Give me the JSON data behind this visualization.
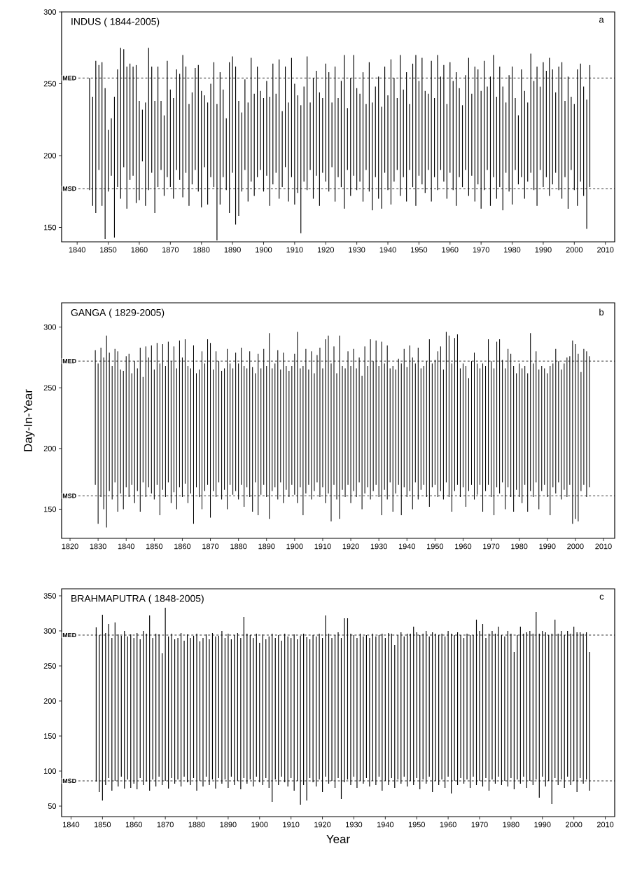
{
  "chart_data": [
    {
      "type": "bar",
      "title": "INDUS ( 1844-2005)",
      "annotations": [
        "a"
      ],
      "color": "#000000",
      "x": [
        1844,
        1845,
        1846,
        1847,
        1848,
        1849,
        1850,
        1851,
        1852,
        1853,
        1854,
        1855,
        1856,
        1857,
        1858,
        1859,
        1860,
        1861,
        1862,
        1863,
        1864,
        1865,
        1866,
        1867,
        1868,
        1869,
        1870,
        1871,
        1872,
        1873,
        1874,
        1875,
        1876,
        1877,
        1878,
        1879,
        1880,
        1881,
        1882,
        1883,
        1884,
        1885,
        1886,
        1887,
        1888,
        1889,
        1890,
        1891,
        1892,
        1893,
        1894,
        1895,
        1896,
        1897,
        1898,
        1899,
        1900,
        1901,
        1902,
        1903,
        1904,
        1905,
        1906,
        1907,
        1908,
        1909,
        1910,
        1911,
        1912,
        1913,
        1914,
        1915,
        1916,
        1917,
        1918,
        1919,
        1920,
        1921,
        1922,
        1923,
        1924,
        1925,
        1926,
        1927,
        1928,
        1929,
        1930,
        1931,
        1932,
        1933,
        1934,
        1935,
        1936,
        1937,
        1938,
        1939,
        1940,
        1941,
        1942,
        1943,
        1944,
        1945,
        1946,
        1947,
        1948,
        1949,
        1950,
        1951,
        1952,
        1953,
        1954,
        1955,
        1956,
        1957,
        1958,
        1959,
        1960,
        1961,
        1962,
        1963,
        1964,
        1965,
        1966,
        1967,
        1968,
        1969,
        1970,
        1971,
        1972,
        1973,
        1974,
        1975,
        1976,
        1977,
        1978,
        1979,
        1980,
        1981,
        1982,
        1983,
        1984,
        1985,
        1986,
        1987,
        1988,
        1989,
        1990,
        1991,
        1992,
        1993,
        1994,
        1995,
        1996,
        1997,
        1998,
        1999,
        2000,
        2001,
        2002,
        2003,
        2004,
        2005
      ],
      "base": [
        176,
        165,
        160,
        190,
        165,
        142,
        175,
        186,
        143,
        178,
        170,
        192,
        163,
        183,
        186,
        167,
        169,
        196,
        165,
        176,
        188,
        160,
        178,
        190,
        172,
        185,
        178,
        170,
        190,
        183,
        171,
        188,
        165,
        180,
        190,
        175,
        164,
        192,
        166,
        185,
        178,
        141,
        166,
        185,
        176,
        160,
        188,
        152,
        158,
        175,
        190,
        168,
        182,
        172,
        185,
        190,
        175,
        186,
        165,
        180,
        188,
        170,
        178,
        192,
        168,
        185,
        166,
        174,
        146,
        182,
        176,
        190,
        170,
        186,
        165,
        188,
        182,
        175,
        192,
        168,
        185,
        178,
        163,
        190,
        172,
        186,
        176,
        182,
        168,
        190,
        175,
        162,
        185,
        170,
        163,
        188,
        176,
        166,
        182,
        190,
        172,
        185,
        168,
        190,
        178,
        165,
        186,
        180,
        174,
        190,
        168,
        185,
        176,
        190,
        182,
        170,
        188,
        176,
        165,
        185,
        178,
        190,
        172,
        186,
        168,
        180,
        163,
        176,
        190,
        165,
        185,
        170,
        178,
        162,
        188,
        175,
        166,
        190,
        180,
        185,
        170,
        182,
        188,
        176,
        165,
        190,
        178,
        185,
        172,
        180,
        188,
        176,
        170,
        185,
        163,
        190,
        176,
        165,
        182,
        172,
        149,
        178
      ],
      "values": [
        78,
        76,
        106,
        73,
        100,
        105,
        43,
        40,
        98,
        82,
        105,
        82,
        99,
        81,
        76,
        96,
        69,
        36,
        72,
        99,
        74,
        78,
        84,
        48,
        56,
        81,
        68,
        70,
        70,
        74,
        99,
        74,
        71,
        64,
        71,
        88,
        81,
        50,
        71,
        65,
        87,
        95,
        92,
        61,
        50,
        105,
        81,
        110,
        80,
        55,
        63,
        69,
        86,
        71,
        77,
        55,
        65,
        66,
        76,
        84,
        55,
        97,
        53,
        70,
        69,
        83,
        84,
        68,
        89,
        66,
        93,
        47,
        84,
        73,
        79,
        52,
        82,
        83,
        45,
        94,
        55,
        74,
        107,
        43,
        82,
        84,
        71,
        61,
        90,
        46,
        90,
        75,
        63,
        85,
        71,
        74,
        66,
        101,
        72,
        50,
        98,
        61,
        90,
        46,
        86,
        105,
        66,
        88,
        71,
        53,
        98,
        55,
        94,
        65,
        81,
        66,
        77,
        76,
        93,
        62,
        57,
        66,
        96,
        57,
        94,
        80,
        82,
        90,
        58,
        90,
        85,
        71,
        84,
        86,
        49,
        81,
        96,
        50,
        48,
        75,
        75,
        55,
        83,
        76,
        97,
        58,
        87,
        74,
        96,
        80,
        56,
        86,
        95,
        53,
        92,
        51,
        60,
        95,
        82,
        76,
        90,
        85
      ],
      "xlim": [
        1835,
        2013
      ],
      "xticks": [
        1840,
        1850,
        1860,
        1870,
        1880,
        1890,
        1900,
        1910,
        1920,
        1930,
        1940,
        1950,
        1960,
        1970,
        1980,
        1990,
        2000,
        2010
      ],
      "ylim": [
        140,
        300
      ],
      "yticks": [
        150,
        200,
        250,
        300
      ],
      "ref_lines": [
        {
          "axis": "y",
          "value": 254,
          "label": "MED",
          "line_style": "dashed"
        },
        {
          "axis": "y",
          "value": 177,
          "label": "MSD",
          "line_style": "dashed"
        }
      ]
    },
    {
      "type": "bar",
      "title": "GANGA ( 1829-2005)",
      "annotations": [
        "b"
      ],
      "ylabel": "Day-In-Year",
      "color": "#000000",
      "x": [
        1829,
        1830,
        1831,
        1832,
        1833,
        1834,
        1835,
        1836,
        1837,
        1838,
        1839,
        1840,
        1841,
        1842,
        1843,
        1844,
        1845,
        1846,
        1847,
        1848,
        1849,
        1850,
        1851,
        1852,
        1853,
        1854,
        1855,
        1856,
        1857,
        1858,
        1859,
        1860,
        1861,
        1862,
        1863,
        1864,
        1865,
        1866,
        1867,
        1868,
        1869,
        1870,
        1871,
        1872,
        1873,
        1874,
        1875,
        1876,
        1877,
        1878,
        1879,
        1880,
        1881,
        1882,
        1883,
        1884,
        1885,
        1886,
        1887,
        1888,
        1889,
        1890,
        1891,
        1892,
        1893,
        1894,
        1895,
        1896,
        1897,
        1898,
        1899,
        1900,
        1901,
        1902,
        1903,
        1904,
        1905,
        1906,
        1907,
        1908,
        1909,
        1910,
        1911,
        1912,
        1913,
        1914,
        1915,
        1916,
        1917,
        1918,
        1919,
        1920,
        1921,
        1922,
        1923,
        1924,
        1925,
        1926,
        1927,
        1928,
        1929,
        1930,
        1931,
        1932,
        1933,
        1934,
        1935,
        1936,
        1937,
        1938,
        1939,
        1940,
        1941,
        1942,
        1943,
        1944,
        1945,
        1946,
        1947,
        1948,
        1949,
        1950,
        1951,
        1952,
        1953,
        1954,
        1955,
        1956,
        1957,
        1958,
        1959,
        1960,
        1961,
        1962,
        1963,
        1964,
        1965,
        1966,
        1967,
        1968,
        1969,
        1970,
        1971,
        1972,
        1973,
        1974,
        1975,
        1976,
        1977,
        1978,
        1979,
        1980,
        1981,
        1982,
        1983,
        1984,
        1985,
        1986,
        1987,
        1988,
        1989,
        1990,
        1991,
        1992,
        1993,
        1994,
        1995,
        1996,
        1997,
        1998,
        1999,
        2000,
        2001,
        2002,
        2003,
        2004,
        2005
      ],
      "base": [
        170,
        138,
        160,
        150,
        135,
        165,
        158,
        172,
        148,
        163,
        150,
        168,
        160,
        170,
        155,
        165,
        148,
        172,
        160,
        168,
        163,
        158,
        170,
        145,
        166,
        160,
        172,
        155,
        164,
        150,
        168,
        160,
        171,
        155,
        163,
        138,
        168,
        160,
        150,
        165,
        170,
        143,
        165,
        160,
        172,
        158,
        166,
        150,
        170,
        162,
        165,
        158,
        170,
        152,
        168,
        160,
        148,
        172,
        145,
        162,
        170,
        160,
        142,
        165,
        168,
        158,
        172,
        155,
        166,
        160,
        170,
        162,
        155,
        168,
        145,
        163,
        170,
        158,
        165,
        172,
        160,
        168,
        155,
        163,
        140,
        170,
        158,
        142,
        166,
        160,
        170,
        155,
        165,
        160,
        172,
        150,
        163,
        168,
        158,
        165,
        170,
        160,
        145,
        166,
        158,
        172,
        148,
        163,
        170,
        145,
        168,
        160,
        165,
        150,
        172,
        158,
        166,
        170,
        160,
        152,
        168,
        170,
        160,
        165,
        158,
        172,
        160,
        148,
        165,
        170,
        160,
        168,
        152,
        165,
        170,
        158,
        162,
        170,
        148,
        165,
        170,
        160,
        145,
        168,
        163,
        172,
        150,
        168,
        160,
        148,
        166,
        160,
        155,
        170,
        148,
        165,
        160,
        172,
        150,
        165,
        170,
        160,
        145,
        168,
        163,
        172,
        158,
        166,
        160,
        170,
        138,
        142,
        140,
        165,
        170,
        160,
        168
      ],
      "values": [
        111,
        132,
        123,
        125,
        158,
        114,
        110,
        110,
        132,
        102,
        114,
        108,
        118,
        92,
        117,
        101,
        135,
        87,
        124,
        107,
        122,
        107,
        117,
        125,
        120,
        108,
        116,
        117,
        120,
        116,
        121,
        115,
        119,
        113,
        103,
        147,
        94,
        105,
        130,
        105,
        120,
        144,
        100,
        120,
        100,
        106,
        100,
        132,
        100,
        104,
        114,
        112,
        113,
        116,
        98,
        120,
        119,
        90,
        133,
        104,
        112,
        108,
        153,
        101,
        102,
        123,
        93,
        124,
        102,
        104,
        98,
        116,
        141,
        98,
        123,
        119,
        95,
        122,
        97,
        105,
        123,
        98,
        135,
        130,
        130,
        114,
        104,
        151,
        102,
        106,
        110,
        113,
        117,
        106,
        103,
        110,
        121,
        100,
        132,
        107,
        119,
        108,
        143,
        104,
        127,
        94,
        120,
        102,
        104,
        125,
        114,
        107,
        120,
        125,
        98,
        125,
        100,
        98,
        112,
        138,
        102,
        103,
        120,
        119,
        107,
        124,
        133,
        122,
        126,
        124,
        106,
        102,
        116,
        93,
        102,
        121,
        108,
        96,
        122,
        103,
        120,
        112,
        121,
        120,
        127,
        101,
        116,
        114,
        118,
        120,
        96,
        110,
        111,
        98,
        114,
        130,
        110,
        108,
        115,
        103,
        96,
        102,
        123,
        102,
        119,
        100,
        107,
        104,
        115,
        106,
        151,
        144,
        138,
        98,
        112,
        120,
        108
      ],
      "xlim": [
        1817,
        2014
      ],
      "xticks": [
        1820,
        1830,
        1840,
        1850,
        1860,
        1870,
        1880,
        1890,
        1900,
        1910,
        1920,
        1930,
        1940,
        1950,
        1960,
        1970,
        1980,
        1990,
        2000,
        2010
      ],
      "ylim": [
        126,
        320
      ],
      "yticks": [
        150,
        200,
        250,
        300
      ],
      "ref_lines": [
        {
          "axis": "y",
          "value": 272,
          "label": "MED",
          "line_style": "dashed"
        },
        {
          "axis": "y",
          "value": 161,
          "label": "MSD",
          "line_style": "dashed"
        }
      ]
    },
    {
      "type": "bar",
      "title": "BRAHMAPUTRA ( 1848-2005)",
      "annotations": [
        "c"
      ],
      "xlabel": "Year",
      "color": "#000000",
      "x": [
        1848,
        1849,
        1850,
        1851,
        1852,
        1853,
        1854,
        1855,
        1856,
        1857,
        1858,
        1859,
        1860,
        1861,
        1862,
        1863,
        1864,
        1865,
        1866,
        1867,
        1868,
        1869,
        1870,
        1871,
        1872,
        1873,
        1874,
        1875,
        1876,
        1877,
        1878,
        1879,
        1880,
        1881,
        1882,
        1883,
        1884,
        1885,
        1886,
        1887,
        1888,
        1889,
        1890,
        1891,
        1892,
        1893,
        1894,
        1895,
        1896,
        1897,
        1898,
        1899,
        1900,
        1901,
        1902,
        1903,
        1904,
        1905,
        1906,
        1907,
        1908,
        1909,
        1910,
        1911,
        1912,
        1913,
        1914,
        1915,
        1916,
        1917,
        1918,
        1919,
        1920,
        1921,
        1922,
        1923,
        1924,
        1925,
        1926,
        1927,
        1928,
        1929,
        1930,
        1931,
        1932,
        1933,
        1934,
        1935,
        1936,
        1937,
        1938,
        1939,
        1940,
        1941,
        1942,
        1943,
        1944,
        1945,
        1946,
        1947,
        1948,
        1949,
        1950,
        1951,
        1952,
        1953,
        1954,
        1955,
        1956,
        1957,
        1958,
        1959,
        1960,
        1961,
        1962,
        1963,
        1964,
        1965,
        1966,
        1967,
        1968,
        1969,
        1970,
        1971,
        1972,
        1973,
        1974,
        1975,
        1976,
        1977,
        1978,
        1979,
        1980,
        1981,
        1982,
        1983,
        1984,
        1985,
        1986,
        1987,
        1988,
        1989,
        1990,
        1991,
        1992,
        1993,
        1994,
        1995,
        1996,
        1997,
        1998,
        1999,
        2000,
        2001,
        2002,
        2003,
        2004,
        2005
      ],
      "base": [
        85,
        70,
        58,
        80,
        90,
        72,
        86,
        78,
        92,
        75,
        88,
        76,
        82,
        74,
        90,
        80,
        85,
        72,
        88,
        78,
        92,
        80,
        86,
        75,
        90,
        82,
        88,
        78,
        92,
        84,
        80,
        90,
        72,
        86,
        78,
        92,
        80,
        88,
        75,
        90,
        82,
        88,
        76,
        92,
        80,
        86,
        74,
        90,
        82,
        88,
        78,
        92,
        84,
        80,
        90,
        76,
        56,
        88,
        80,
        92,
        84,
        78,
        90,
        72,
        86,
        52,
        80,
        58,
        90,
        84,
        78,
        88,
        70,
        92,
        82,
        86,
        76,
        90,
        60,
        84,
        88,
        80,
        92,
        76,
        86,
        82,
        90,
        78,
        86,
        80,
        92,
        72,
        86,
        80,
        90,
        76,
        88,
        82,
        92,
        78,
        86,
        80,
        90,
        74,
        88,
        82,
        92,
        70,
        86,
        80,
        88,
        76,
        92,
        68,
        86,
        80,
        90,
        82,
        88,
        76,
        92,
        80,
        86,
        78,
        90,
        72,
        88,
        82,
        92,
        80,
        86,
        78,
        90,
        74,
        88,
        82,
        92,
        76,
        86,
        80,
        88,
        62,
        92,
        78,
        86,
        53,
        90,
        80,
        88,
        76,
        92,
        80,
        86,
        70,
        90,
        82,
        88,
        72
      ],
      "values": [
        220,
        224,
        265,
        217,
        220,
        218,
        226,
        217,
        201,
        225,
        204,
        219,
        208,
        223,
        198,
        220,
        211,
        250,
        202,
        218,
        203,
        188,
        247,
        217,
        206,
        206,
        202,
        219,
        194,
        211,
        210,
        203,
        224,
        199,
        212,
        203,
        208,
        209,
        217,
        203,
        218,
        202,
        220,
        196,
        214,
        211,
        216,
        230,
        214,
        206,
        212,
        204,
        199,
        215,
        198,
        216,
        240,
        202,
        214,
        194,
        212,
        214,
        200,
        223,
        202,
        241,
        216,
        233,
        198,
        210,
        214,
        208,
        220,
        230,
        214,
        204,
        218,
        208,
        230,
        234,
        230,
        216,
        202,
        214,
        210,
        210,
        204,
        212,
        210,
        212,
        202,
        224,
        204,
        217,
        206,
        204,
        206,
        216,
        200,
        218,
        210,
        226,
        208,
        220,
        208,
        218,
        200,
        228,
        210,
        214,
        208,
        216,
        208,
        228,
        208,
        218,
        204,
        208,
        208,
        218,
        202,
        236,
        214,
        232,
        200,
        224,
        212,
        214,
        214,
        214,
        206,
        222,
        206,
        196,
        206,
        224,
        204,
        222,
        214,
        216,
        239,
        234,
        208,
        220,
        208,
        243,
        226,
        216,
        212,
        218,
        208,
        216,
        220,
        228,
        208,
        214,
        210,
        198
      ],
      "xlim": [
        1837,
        2013
      ],
      "xticks": [
        1840,
        1850,
        1860,
        1870,
        1880,
        1890,
        1900,
        1910,
        1920,
        1930,
        1940,
        1950,
        1960,
        1970,
        1980,
        1990,
        2000,
        2010
      ],
      "ylim": [
        35,
        360
      ],
      "yticks": [
        50,
        100,
        150,
        200,
        250,
        300,
        350
      ],
      "ref_lines": [
        {
          "axis": "y",
          "value": 294,
          "label": "MED",
          "line_style": "dashed"
        },
        {
          "axis": "y",
          "value": 86,
          "label": "MSD",
          "line_style": "dashed"
        }
      ]
    }
  ]
}
